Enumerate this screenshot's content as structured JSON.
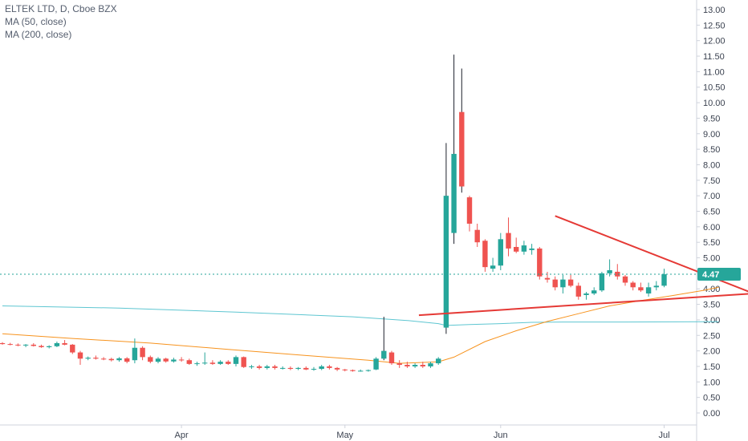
{
  "legend": {
    "symbol": "ELTEK LTD, D, Cboe BZX",
    "ma50": "MA (50, close)",
    "ma200": "MA (200, close)"
  },
  "colors": {
    "up": "#26a69a",
    "down": "#ef5350",
    "wick_spike": "#1e222d",
    "ma50": "#f7931e",
    "ma200": "#5ec6d1",
    "trendline": "#e53935",
    "last_price": "#26a69a",
    "axis_text": "#3b4250",
    "border": "#cfd3dc"
  },
  "chart_data": {
    "type": "candlestick",
    "title": "ELTEK LTD, D, Cboe BZX",
    "ylim": [
      -0.5,
      13.3
    ],
    "yticks": [
      0.0,
      0.5,
      1.0,
      1.5,
      2.0,
      2.5,
      3.0,
      3.5,
      4.0,
      4.5,
      5.0,
      5.5,
      6.0,
      6.5,
      7.0,
      7.5,
      8.0,
      8.5,
      9.0,
      9.5,
      10.0,
      10.5,
      11.0,
      11.5,
      12.0,
      12.5,
      13.0
    ],
    "ytick_labels": [
      "0.00",
      "0.50",
      "1.00",
      "1.50",
      "2.00",
      "2.50",
      "3.00",
      "3.50",
      "4.00",
      "4.50",
      "5.00",
      "5.50",
      "6.00",
      "6.50",
      "7.00",
      "7.50",
      "8.00",
      "8.50",
      "9.00",
      "9.50",
      "10.00",
      "10.50",
      "11.00",
      "11.50",
      "12.00",
      "12.50",
      "13.00"
    ],
    "xticks": [
      {
        "label": "Apr",
        "index": 23
      },
      {
        "label": "May",
        "index": 44
      },
      {
        "label": "Jun",
        "index": 64
      },
      {
        "label": "Jul",
        "index": 85
      }
    ],
    "last_price": 4.47,
    "last_price_label": "4.47",
    "candles": [
      [
        2.25,
        2.28,
        2.2,
        2.22
      ],
      [
        2.22,
        2.26,
        2.18,
        2.2
      ],
      [
        2.2,
        2.24,
        2.15,
        2.18
      ],
      [
        2.18,
        2.22,
        2.12,
        2.2
      ],
      [
        2.2,
        2.25,
        2.14,
        2.16
      ],
      [
        2.16,
        2.2,
        2.1,
        2.12
      ],
      [
        2.12,
        2.18,
        2.08,
        2.15
      ],
      [
        2.15,
        2.3,
        2.12,
        2.25
      ],
      [
        2.25,
        2.35,
        2.18,
        2.2
      ],
      [
        2.2,
        2.22,
        1.9,
        1.95
      ],
      [
        1.95,
        2.0,
        1.55,
        1.75
      ],
      [
        1.75,
        1.82,
        1.7,
        1.78
      ],
      [
        1.78,
        1.85,
        1.72,
        1.75
      ],
      [
        1.75,
        1.8,
        1.7,
        1.74
      ],
      [
        1.74,
        1.78,
        1.66,
        1.7
      ],
      [
        1.7,
        1.8,
        1.65,
        1.76
      ],
      [
        1.76,
        1.8,
        1.6,
        1.65
      ],
      [
        1.7,
        2.4,
        1.6,
        2.1
      ],
      [
        2.1,
        2.15,
        1.7,
        1.8
      ],
      [
        1.8,
        1.85,
        1.6,
        1.65
      ],
      [
        1.65,
        1.8,
        1.6,
        1.75
      ],
      [
        1.75,
        1.78,
        1.62,
        1.66
      ],
      [
        1.66,
        1.78,
        1.62,
        1.72
      ],
      [
        1.72,
        1.8,
        1.65,
        1.7
      ],
      [
        1.7,
        1.75,
        1.55,
        1.58
      ],
      [
        1.58,
        1.65,
        1.52,
        1.6
      ],
      [
        1.6,
        1.95,
        1.55,
        1.62
      ],
      [
        1.62,
        1.7,
        1.55,
        1.58
      ],
      [
        1.58,
        1.7,
        1.55,
        1.65
      ],
      [
        1.65,
        1.7,
        1.55,
        1.58
      ],
      [
        1.58,
        1.85,
        1.5,
        1.8
      ],
      [
        1.8,
        1.82,
        1.45,
        1.48
      ],
      [
        1.48,
        1.55,
        1.42,
        1.5
      ],
      [
        1.5,
        1.55,
        1.4,
        1.45
      ],
      [
        1.45,
        1.55,
        1.4,
        1.5
      ],
      [
        1.5,
        1.55,
        1.4,
        1.45
      ],
      [
        1.45,
        1.5,
        1.4,
        1.45
      ],
      [
        1.45,
        1.5,
        1.38,
        1.42
      ],
      [
        1.42,
        1.48,
        1.38,
        1.45
      ],
      [
        1.45,
        1.5,
        1.38,
        1.4
      ],
      [
        1.4,
        1.48,
        1.36,
        1.42
      ],
      [
        1.42,
        1.55,
        1.38,
        1.5
      ],
      [
        1.5,
        1.55,
        1.4,
        1.45
      ],
      [
        1.45,
        1.48,
        1.35,
        1.4
      ],
      [
        1.4,
        1.42,
        1.34,
        1.38
      ],
      [
        1.38,
        1.4,
        1.33,
        1.35
      ],
      [
        1.35,
        1.4,
        1.33,
        1.36
      ],
      [
        1.36,
        1.4,
        1.33,
        1.38
      ],
      [
        1.4,
        1.8,
        1.38,
        1.75
      ],
      [
        1.75,
        3.1,
        1.7,
        2.0
      ],
      [
        1.95,
        2.0,
        1.55,
        1.6
      ],
      [
        1.6,
        1.7,
        1.45,
        1.55
      ],
      [
        1.55,
        1.65,
        1.45,
        1.5
      ],
      [
        1.5,
        1.6,
        1.45,
        1.55
      ],
      [
        1.55,
        1.65,
        1.45,
        1.5
      ],
      [
        1.5,
        1.65,
        1.45,
        1.6
      ],
      [
        1.6,
        1.8,
        1.55,
        1.75
      ],
      [
        2.75,
        8.7,
        2.55,
        7.0
      ],
      [
        5.8,
        11.55,
        5.45,
        8.35
      ],
      [
        9.7,
        11.1,
        7.1,
        7.3
      ],
      [
        6.95,
        7.0,
        5.85,
        6.1
      ],
      [
        5.9,
        6.1,
        5.35,
        5.5
      ],
      [
        5.55,
        5.6,
        4.55,
        4.7
      ],
      [
        4.65,
        5.0,
        4.55,
        4.75
      ],
      [
        4.75,
        5.8,
        4.6,
        5.6
      ],
      [
        5.8,
        6.3,
        5.05,
        5.3
      ],
      [
        5.35,
        5.65,
        5.15,
        5.2
      ],
      [
        5.2,
        5.55,
        5.1,
        5.4
      ],
      [
        5.25,
        5.45,
        5.1,
        5.3
      ],
      [
        5.3,
        5.35,
        4.3,
        4.4
      ],
      [
        4.35,
        4.55,
        4.2,
        4.3
      ],
      [
        4.3,
        4.4,
        3.95,
        4.05
      ],
      [
        4.05,
        4.45,
        3.85,
        4.3
      ],
      [
        4.3,
        4.45,
        4.05,
        4.1
      ],
      [
        4.1,
        4.2,
        3.65,
        3.75
      ],
      [
        3.8,
        3.9,
        3.65,
        3.85
      ],
      [
        3.85,
        4.05,
        3.8,
        3.95
      ],
      [
        3.95,
        4.55,
        3.9,
        4.5
      ],
      [
        4.5,
        4.95,
        4.4,
        4.6
      ],
      [
        4.55,
        4.8,
        4.3,
        4.4
      ],
      [
        4.4,
        4.45,
        4.1,
        4.2
      ],
      [
        4.2,
        4.25,
        3.95,
        4.05
      ],
      [
        4.05,
        4.2,
        3.9,
        3.95
      ],
      [
        3.85,
        4.2,
        3.75,
        4.05
      ],
      [
        4.05,
        4.25,
        3.95,
        4.1
      ],
      [
        4.1,
        4.65,
        4.05,
        4.47
      ]
    ],
    "ma50": [
      [
        0,
        2.55
      ],
      [
        9,
        2.4
      ],
      [
        19,
        2.25
      ],
      [
        29,
        2.05
      ],
      [
        39,
        1.85
      ],
      [
        47,
        1.7
      ],
      [
        51,
        1.6
      ],
      [
        56,
        1.65
      ],
      [
        58,
        1.8
      ],
      [
        62,
        2.3
      ],
      [
        66,
        2.65
      ],
      [
        70,
        2.95
      ],
      [
        74,
        3.2
      ],
      [
        78,
        3.45
      ],
      [
        82,
        3.62
      ],
      [
        86,
        3.78
      ],
      [
        90,
        3.95
      ],
      [
        92,
        4.05
      ]
    ],
    "ma200": [
      [
        0,
        3.45
      ],
      [
        15,
        3.38
      ],
      [
        30,
        3.25
      ],
      [
        45,
        3.1
      ],
      [
        52,
        2.98
      ],
      [
        56,
        2.88
      ],
      [
        57,
        2.82
      ],
      [
        60,
        2.85
      ],
      [
        64,
        2.88
      ],
      [
        68,
        2.92
      ],
      [
        72,
        2.93
      ],
      [
        80,
        2.93
      ],
      [
        90,
        2.94
      ],
      [
        92,
        2.94
      ]
    ],
    "trendlines": [
      {
        "from": [
          53.5,
          3.15
        ],
        "to": [
          96.5,
          3.85
        ]
      },
      {
        "from": [
          71,
          6.35
        ],
        "to": [
          96.5,
          3.85
        ]
      }
    ]
  }
}
